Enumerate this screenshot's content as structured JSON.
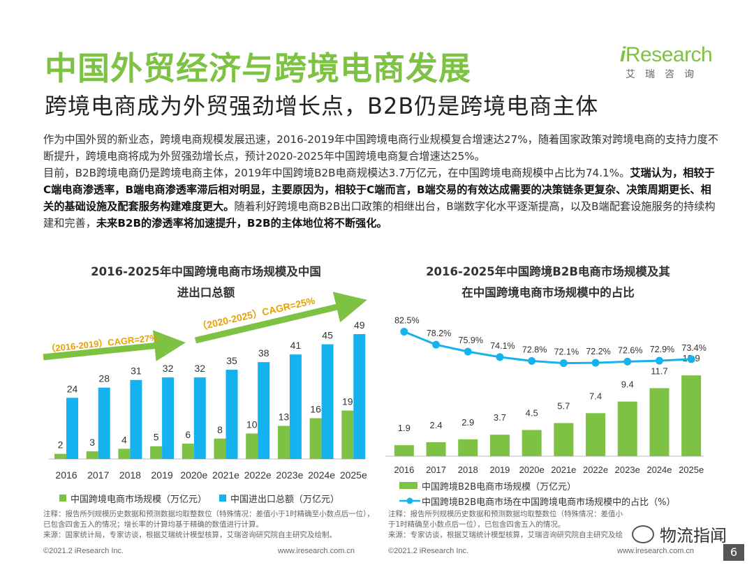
{
  "header": {
    "title": "中国外贸经济与跨境电商发展",
    "subtitle": "跨境电商成为外贸强劲增长点，B2B仍是跨境电商主体"
  },
  "logo": {
    "brand_i": "i",
    "brand_rest": "Research",
    "chinese": "艾瑞咨询"
  },
  "body": {
    "p1": "作为中国外贸的新业态，跨境电商规模发展迅速，2016-2019年中国跨境电商行业规模复合增速达27%，随着国家政策对跨境电商的支持力度不断提升，跨境电商将成为外贸强劲增长点，预计2020-2025年中国跨境电商复合增速达25%。",
    "p2_plain": "目前，B2B跨境电商仍是跨境电商主体，2019年中国跨境B2B电商规模达3.7万亿元，在中国跨境电商规模中占比为74.1%。",
    "p2_bold": "艾瑞认为，相较于C端电商渗透率，B端电商渗透率滞后相对明显，主要原因为，相较于C端而言，B端交易的有效达成需要的决策链条更复杂、决策周期更长、相关的基础设施及配套服务构建难度更大。",
    "p2_plain2": "随着利好跨境电商B2B出口政策的相继出台，B端数字化水平逐渐提高，以及B端配套设施服务的持续构建和完善，",
    "p2_bold2": "未来B2B的渗透率将加速提升，B2B的主体地位将不断强化。"
  },
  "chart_data": [
    {
      "type": "bar",
      "title_line1": "2016-2025年中国跨境电商市场规模及中国",
      "title_line2": "进出口总额",
      "categories": [
        "2016",
        "2017",
        "2018",
        "2019",
        "2020e",
        "2021e",
        "2022e",
        "2023e",
        "2024e",
        "2025e"
      ],
      "series": [
        {
          "name": "中国跨境电商市场规模（万亿元）",
          "values": [
            2,
            3,
            4,
            5,
            6,
            8,
            10,
            13,
            16,
            19
          ],
          "color": "#7dc242"
        },
        {
          "name": "中国进出口总额（万亿元）",
          "values": [
            24,
            28,
            31,
            32,
            32,
            35,
            38,
            41,
            45,
            49
          ],
          "color": "#14b2ef"
        }
      ],
      "annotations": [
        "（2016-2019）CAGR=27%",
        "（2020-2025）CAGR=25%"
      ],
      "ylim": [
        0,
        52
      ]
    },
    {
      "type": "bar+line",
      "title_line1": "2016-2025年中国跨境B2B电商市场规模及其",
      "title_line2": "在中国跨境电商市场规模中的占比",
      "categories": [
        "2016",
        "2017",
        "2018",
        "2019",
        "2020e",
        "2021e",
        "2022e",
        "2023e",
        "2024e",
        "2025e"
      ],
      "series": [
        {
          "name": "中国跨境B2B电商市场规模（万亿元）",
          "kind": "bar",
          "values": [
            1.9,
            2.4,
            2.9,
            3.7,
            4.5,
            5.7,
            7.4,
            9.4,
            11.7,
            13.9
          ],
          "color": "#7dc242"
        },
        {
          "name": "中国跨境B2B电商市场在中国跨境电商市场规模中的占比（%）",
          "kind": "line",
          "values": [
            82.5,
            78.2,
            75.9,
            74.1,
            72.8,
            72.1,
            72.2,
            72.6,
            72.9,
            73.4
          ],
          "color": "#14b2ef"
        }
      ],
      "value_labels": [
        "1.9",
        "2.4",
        "2.9",
        "3.7",
        "4.5",
        "5.7",
        "7.4",
        "9.4",
        "11.7",
        "13.9"
      ],
      "pct_labels": [
        "82.5%",
        "78.2%",
        "75.9%",
        "74.1%",
        "72.8%",
        "72.1%",
        "72.2%",
        "72.6%",
        "72.9%",
        "73.4%"
      ],
      "ylim_bar": [
        0,
        15
      ],
      "ylim_line": [
        60,
        90
      ]
    }
  ],
  "notes": {
    "left": "注释：报告所列规模历史数据和预测数据均取整数位（特殊情况：差值小于1时精确至小数点后一位），已包含四舍五入的情况；增长率的计算均基于精确的数值进行计算。\n来源：国家统计局，专家访谈，根据艾瑞统计模型核算，艾瑞咨询研究院自主研究及绘制。",
    "right": "注释：报告所列规模历史数据和预测数据均取整数位（特殊情况：差值小于1时精确至小数点后一位），已包含四舍五入的情况。\n来源：专家访谈，根据艾瑞统计模型核算，艾瑞咨询研究院自主研究及绘制。"
  },
  "footer": {
    "copyright_left": "©2021.2 iResearch Inc.",
    "url_left": "www.iresearch.com.cn",
    "copyright_right": "©2021.2 iResearch Inc.",
    "url_right": "www.iresearch.com.cn",
    "wechat": "物流指闻",
    "page": "6"
  }
}
